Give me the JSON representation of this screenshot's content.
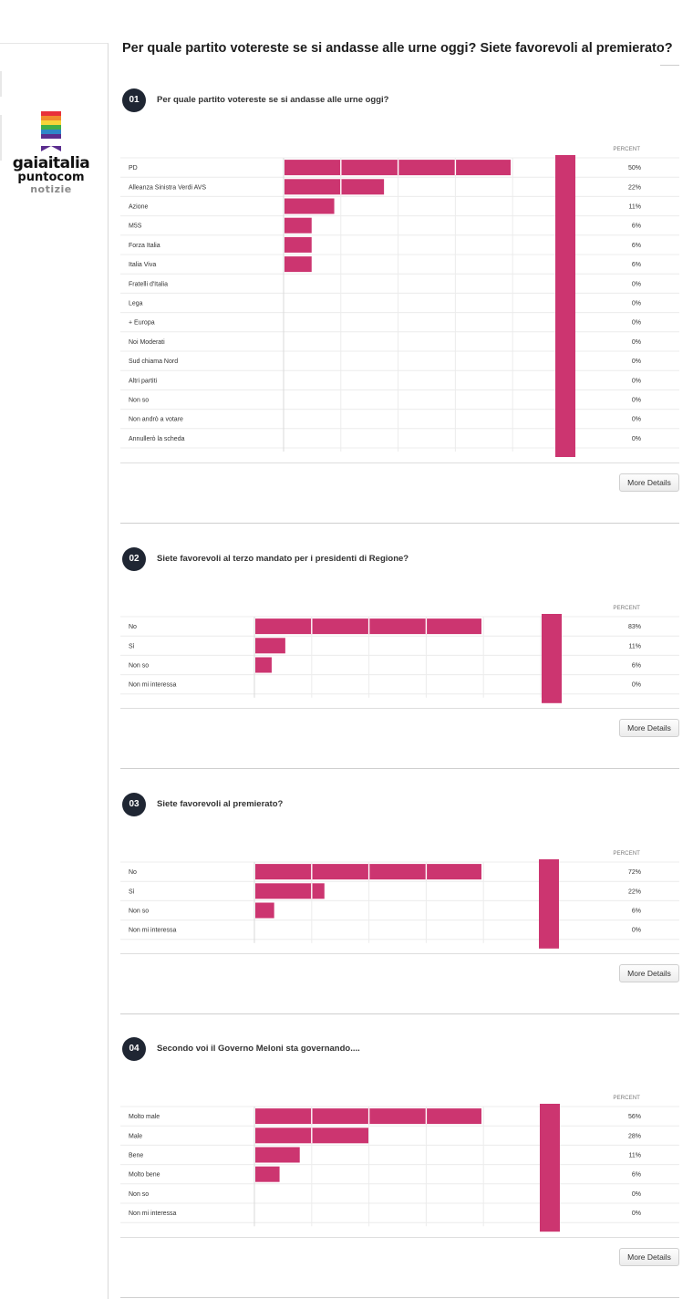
{
  "page": {
    "title": "Per quale partito votereste se si andasse alle urne oggi? Siete favorevoli al premierato?",
    "logo": {
      "line1": "gaiaitalia",
      "line2": "puntocom",
      "line3": "notizie"
    }
  },
  "colors": {
    "bar": "#cc3570",
    "badge": "#1f2633",
    "grid": "#ececec",
    "logo_stripes": [
      "#e8303a",
      "#f08b2d",
      "#f6d43a",
      "#3fae49",
      "#2e86c8",
      "#5b2d8e"
    ]
  },
  "more_details_label": "More Details",
  "percent_header": "PERCENT",
  "chart_data": [
    {
      "type": "bar",
      "number": "01",
      "title": "Per quale partito votereste se si andasse alle urne oggi?",
      "categories": [
        "PD",
        "Alleanza Sinistra Verdi AVS",
        "Azione",
        "M5S",
        "Forza Italia",
        "Italia Viva",
        "Fratelli d'Italia",
        "Lega",
        "+ Europa",
        "Noi Moderati",
        "Sud chiama Nord",
        "Altri partiti",
        "Non so",
        "Non andrò a votare",
        "Annullerò la scheda"
      ],
      "values": [
        50,
        22,
        11,
        6,
        6,
        6,
        0,
        0,
        0,
        0,
        0,
        0,
        0,
        0,
        0
      ],
      "value_labels": [
        "50%",
        "22%",
        "11%",
        "6%",
        "6%",
        "6%",
        "0%",
        "0%",
        "0%",
        "0%",
        "0%",
        "0%",
        "0%",
        "0%",
        "0%"
      ],
      "xlim": [
        0,
        100
      ],
      "grid": true
    },
    {
      "type": "bar",
      "number": "02",
      "title": "Siete favorevoli al terzo mandato per i presidenti di Regione?",
      "categories": [
        "No",
        "Sì",
        "Non so",
        "Non mi interessa"
      ],
      "values": [
        83,
        11,
        6,
        0
      ],
      "value_labels": [
        "83%",
        "11%",
        "6%",
        "0%"
      ],
      "xlim": [
        0,
        100
      ],
      "grid": true
    },
    {
      "type": "bar",
      "number": "03",
      "title": "Siete favorevoli al premierato?",
      "categories": [
        "No",
        "Sì",
        "Non so",
        "Non mi interessa"
      ],
      "values": [
        72,
        22,
        6,
        0
      ],
      "value_labels": [
        "72%",
        "22%",
        "6%",
        "0%"
      ],
      "xlim": [
        0,
        100
      ],
      "grid": true
    },
    {
      "type": "bar",
      "number": "04",
      "title": "Secondo voi il Governo Meloni sta governando....",
      "categories": [
        "Molto male",
        "Male",
        "Bene",
        "Molto bene",
        "Non so",
        "Non mi interessa"
      ],
      "values": [
        56,
        28,
        11,
        6,
        0,
        0
      ],
      "value_labels": [
        "56%",
        "28%",
        "11%",
        "6%",
        "0%",
        "0%"
      ],
      "xlim": [
        0,
        100
      ],
      "grid": true
    }
  ]
}
